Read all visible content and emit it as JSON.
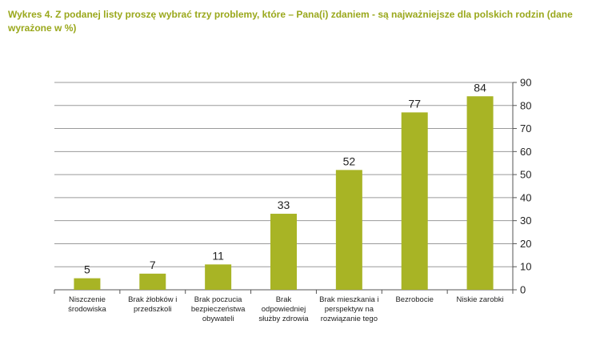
{
  "chart_data": {
    "type": "bar",
    "title": "Wykres  4. Z podanej listy proszę wybrać  trzy problemy,  które – Pana(i) zdaniem - są najważniejsze dla polskich rodzin (dane wyrażone  w %)",
    "categories": [
      [
        "Niszczenie",
        "środowiska"
      ],
      [
        "Brak żłobków i",
        "przedszkoli"
      ],
      [
        "Brak poczucia",
        "bezpieczeństwa",
        "obywateli"
      ],
      [
        "Brak",
        "odpowiedniej",
        "służby zdrowia"
      ],
      [
        "Brak mieszkania i",
        "perspektyw na",
        "rozwiązanie tego"
      ],
      [
        "Bezrobocie"
      ],
      [
        "Niskie zarobki"
      ]
    ],
    "values": [
      5,
      7,
      11,
      33,
      52,
      77,
      84
    ],
    "yticks": [
      "0",
      "10",
      "20",
      "30",
      "40",
      "50",
      "60",
      "70",
      "80",
      "90"
    ],
    "ylim": [
      0,
      90
    ],
    "yaxis_position": "right",
    "grid": true,
    "bar_color": "#a8b425",
    "grid_color": "#9a9a9a",
    "title_color": "#9aa81c"
  }
}
